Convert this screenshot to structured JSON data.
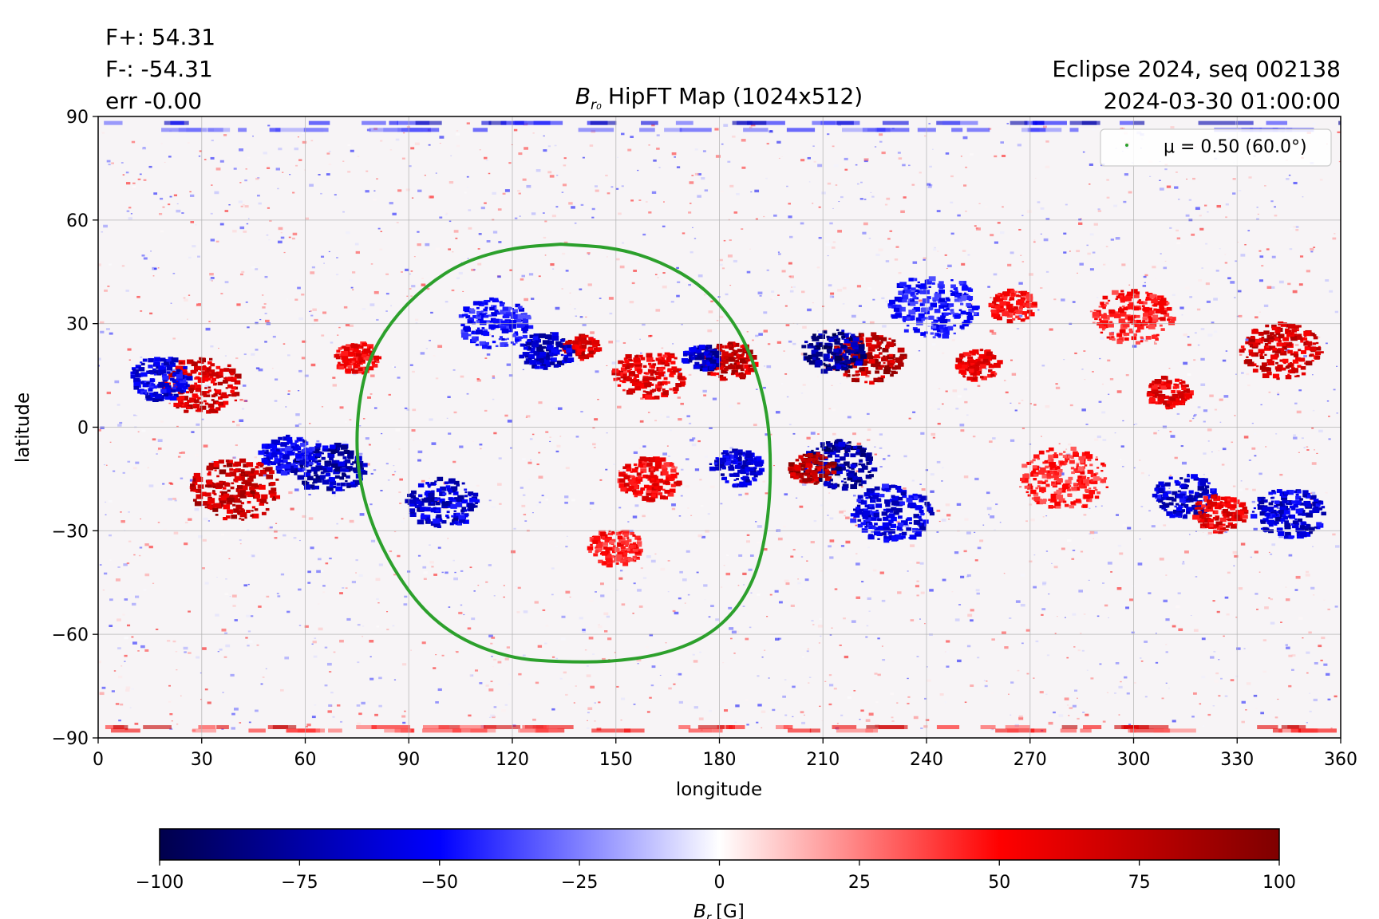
{
  "header": {
    "flux_pos": "F+: 54.31",
    "flux_neg": "F-: -54.31",
    "err": "err -0.00",
    "title_main": "HipFT Map (1024x512)",
    "title_sym": "B",
    "title_sub": "r₀",
    "run_label": "Eclipse 2024, seq 002138",
    "datetime": "2024-03-30 01:00:00"
  },
  "legend": {
    "entry": "μ = 0.50 (60.0°)",
    "marker_color": "#2ca02c"
  },
  "colorbar": {
    "label_sym": "B",
    "label_sub": "r",
    "label_unit": "[G]",
    "ticks": [
      "−100",
      "−75",
      "−50",
      "−25",
      "0",
      "25",
      "50",
      "75",
      "100"
    ],
    "range": [
      -100,
      100
    ],
    "colormap": "seismic"
  },
  "chart_data": {
    "type": "heatmap",
    "title": "B_r0 HipFT Map (1024x512)",
    "xlabel": "longitude",
    "ylabel": "latitude",
    "xlim": [
      0,
      360
    ],
    "ylim": [
      -90,
      90
    ],
    "xticks": [
      "0",
      "30",
      "60",
      "90",
      "120",
      "150",
      "180",
      "210",
      "240",
      "270",
      "300",
      "330",
      "360"
    ],
    "yticks": [
      "90",
      "60",
      "30",
      "0",
      "−30",
      "−60",
      "−90"
    ],
    "grid": true,
    "clim": [
      -100,
      100
    ],
    "colormap": "seismic",
    "legend_position": "upper right",
    "contour": {
      "name": "μ = 0.50 (60.0°)",
      "color": "#2ca02c",
      "points": [
        [
          134,
          53
        ],
        [
          150,
          52
        ],
        [
          163,
          48
        ],
        [
          175,
          41
        ],
        [
          184,
          31
        ],
        [
          190,
          19
        ],
        [
          194,
          4
        ],
        [
          195,
          -12
        ],
        [
          194,
          -28
        ],
        [
          191,
          -42
        ],
        [
          185,
          -53
        ],
        [
          176,
          -61
        ],
        [
          163,
          -66
        ],
        [
          148,
          -68
        ],
        [
          134,
          -68
        ],
        [
          120,
          -67
        ],
        [
          106,
          -62
        ],
        [
          95,
          -54
        ],
        [
          86,
          -42
        ],
        [
          79,
          -28
        ],
        [
          75,
          -12
        ],
        [
          75,
          4
        ],
        [
          78,
          19
        ],
        [
          85,
          31
        ],
        [
          95,
          41
        ],
        [
          106,
          48
        ],
        [
          120,
          52
        ],
        [
          134,
          53
        ]
      ]
    },
    "regions": [
      {
        "lon": 215,
        "lat": -11,
        "value": -100,
        "size": 8
      },
      {
        "lon": 207,
        "lat": -12,
        "value": 100,
        "size": 5
      },
      {
        "lon": 223,
        "lat": 20,
        "value": 100,
        "size": 8
      },
      {
        "lon": 213,
        "lat": 22,
        "value": -100,
        "size": 7
      },
      {
        "lon": 183,
        "lat": 19,
        "value": 90,
        "size": 6
      },
      {
        "lon": 175,
        "lat": 20,
        "value": -90,
        "size": 4
      },
      {
        "lon": 140,
        "lat": 23,
        "value": 85,
        "size": 4
      },
      {
        "lon": 130,
        "lat": 22,
        "value": -85,
        "size": 6
      },
      {
        "lon": 160,
        "lat": 15,
        "value": 75,
        "size": 8
      },
      {
        "lon": 40,
        "lat": -18,
        "value": 95,
        "size": 10
      },
      {
        "lon": 30,
        "lat": 12,
        "value": 85,
        "size": 9
      },
      {
        "lon": 18,
        "lat": 14,
        "value": -75,
        "size": 7
      },
      {
        "lon": 67,
        "lat": -12,
        "value": -90,
        "size": 8
      },
      {
        "lon": 55,
        "lat": -8,
        "value": -70,
        "size": 6
      },
      {
        "lon": 100,
        "lat": -22,
        "value": -80,
        "size": 8
      },
      {
        "lon": 185,
        "lat": -12,
        "value": -80,
        "size": 6
      },
      {
        "lon": 160,
        "lat": -15,
        "value": 70,
        "size": 7
      },
      {
        "lon": 150,
        "lat": -35,
        "value": 60,
        "size": 6
      },
      {
        "lon": 255,
        "lat": 18,
        "value": 75,
        "size": 5
      },
      {
        "lon": 242,
        "lat": 35,
        "value": -60,
        "size": 10
      },
      {
        "lon": 315,
        "lat": -20,
        "value": -80,
        "size": 7
      },
      {
        "lon": 325,
        "lat": -25,
        "value": 75,
        "size": 6
      },
      {
        "lon": 345,
        "lat": -25,
        "value": -80,
        "size": 8
      },
      {
        "lon": 343,
        "lat": 22,
        "value": 85,
        "size": 9
      },
      {
        "lon": 310,
        "lat": 10,
        "value": 75,
        "size": 5
      },
      {
        "lon": 300,
        "lat": 32,
        "value": 60,
        "size": 9
      },
      {
        "lon": 265,
        "lat": 35,
        "value": 65,
        "size": 5
      },
      {
        "lon": 280,
        "lat": -15,
        "value": 55,
        "size": 10
      },
      {
        "lon": 230,
        "lat": -25,
        "value": -75,
        "size": 9
      },
      {
        "lon": 115,
        "lat": 30,
        "value": -60,
        "size": 8
      },
      {
        "lon": 75,
        "lat": 20,
        "value": 70,
        "size": 5
      }
    ]
  }
}
